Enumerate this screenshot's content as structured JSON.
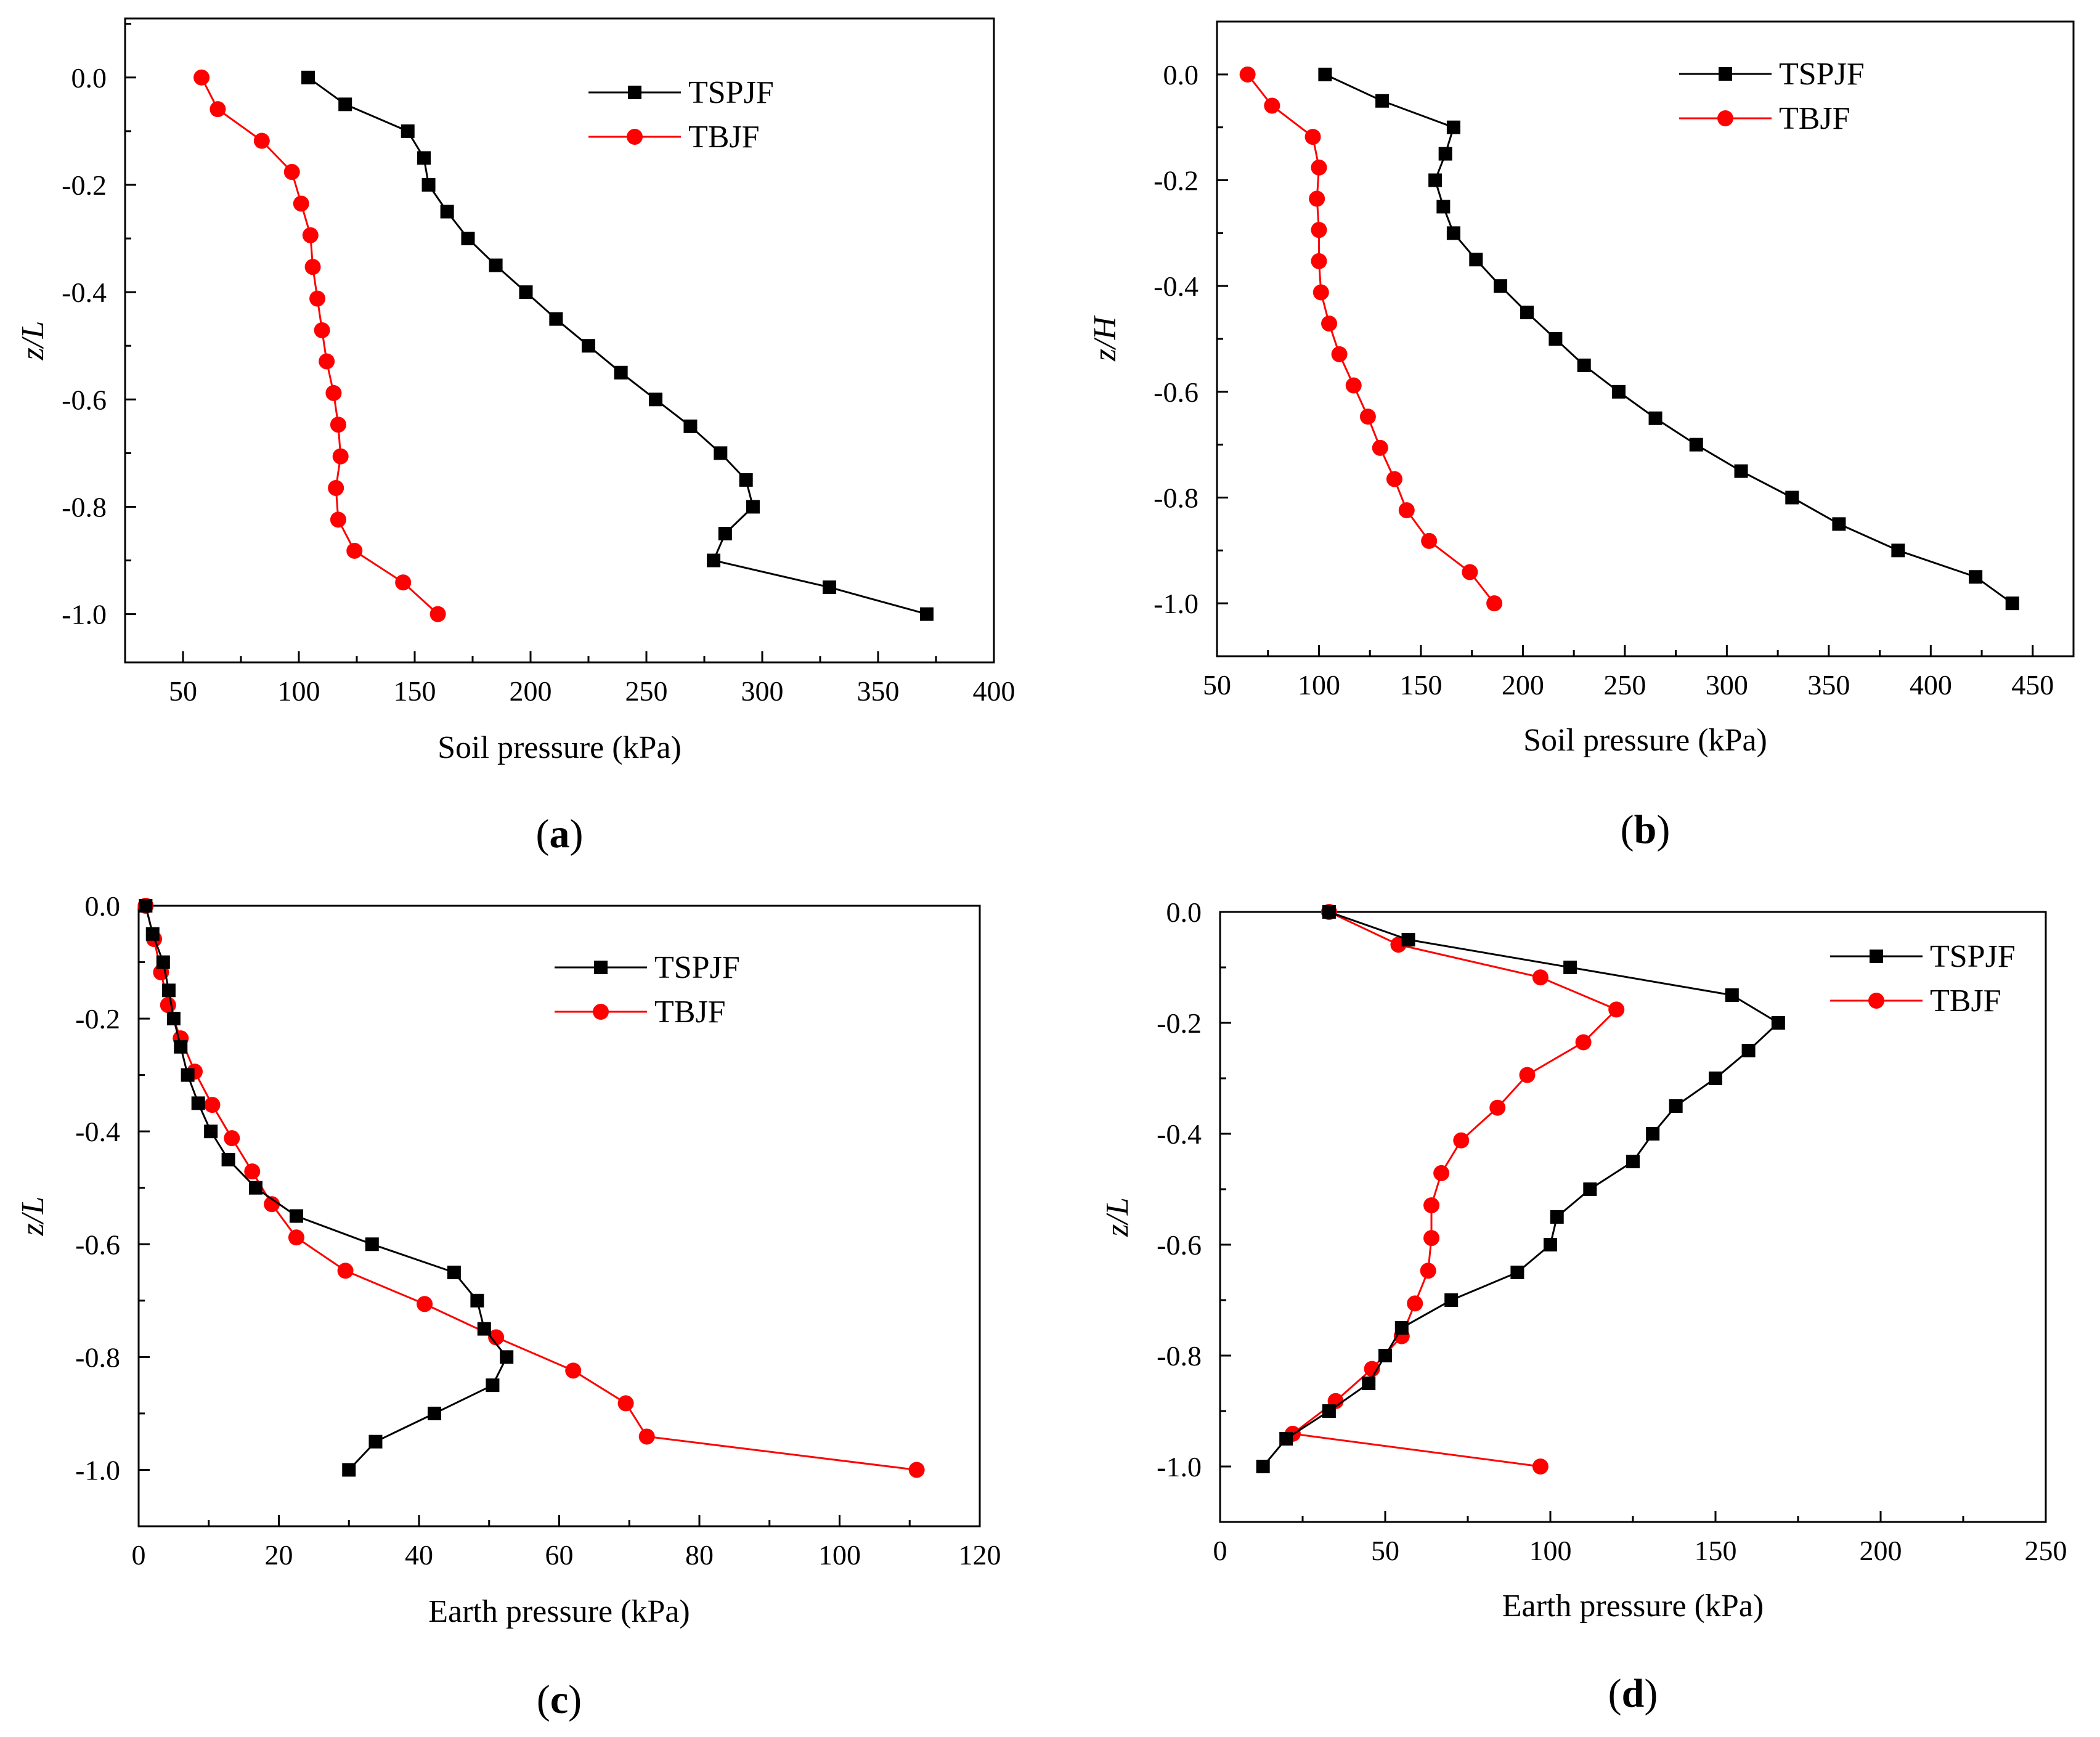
{
  "figure": {
    "panels": [
      {
        "letter": "a"
      },
      {
        "letter": "b"
      },
      {
        "letter": "c"
      },
      {
        "letter": "d"
      }
    ]
  },
  "colors": {
    "tspjf": "#000000",
    "tbjf": "#ff0000",
    "axis": "#000000"
  },
  "chart_data": [
    {
      "id": "a",
      "type": "line",
      "xlabel": "Soil pressure (kPa)",
      "ylabel": "z/L",
      "xlim": [
        25,
        400
      ],
      "ylim": [
        -1.09,
        0.11
      ],
      "xticks": [
        50,
        100,
        150,
        200,
        250,
        300,
        350,
        400
      ],
      "xtick_labels": [
        "50",
        "100",
        "150",
        "200",
        "250",
        "300",
        "350",
        "400"
      ],
      "yticks": [
        0,
        -0.2,
        -0.4,
        -0.6,
        -0.8,
        -1.0
      ],
      "ytick_labels": [
        "0.0",
        "-0.2",
        "-0.4",
        "-0.6",
        "-0.8",
        "-1.0"
      ],
      "legend_position": "top-right",
      "series": [
        {
          "name": "TSPJF",
          "marker": "square",
          "color": "#000000",
          "points": [
            [
              104,
              0
            ],
            [
              120,
              -0.05
            ],
            [
              147,
              -0.1
            ],
            [
              154,
              -0.15
            ],
            [
              156,
              -0.2
            ],
            [
              164,
              -0.25
            ],
            [
              173,
              -0.3
            ],
            [
              185,
              -0.35
            ],
            [
              198,
              -0.4
            ],
            [
              211,
              -0.45
            ],
            [
              225,
              -0.5
            ],
            [
              239,
              -0.55
            ],
            [
              254,
              -0.6
            ],
            [
              269,
              -0.65
            ],
            [
              282,
              -0.7
            ],
            [
              293,
              -0.75
            ],
            [
              296,
              -0.8
            ],
            [
              284,
              -0.85
            ],
            [
              279,
              -0.9
            ],
            [
              329,
              -0.95
            ],
            [
              371,
              -1.0
            ]
          ]
        },
        {
          "name": "TBJF",
          "marker": "circle",
          "color": "#ff0000",
          "points": [
            [
              58,
              0
            ],
            [
              65,
              -0.059
            ],
            [
              84,
              -0.118
            ],
            [
              97,
              -0.176
            ],
            [
              101,
              -0.235
            ],
            [
              105,
              -0.294
            ],
            [
              106,
              -0.353
            ],
            [
              108,
              -0.412
            ],
            [
              110,
              -0.471
            ],
            [
              112,
              -0.529
            ],
            [
              115,
              -0.588
            ],
            [
              117,
              -0.647
            ],
            [
              118,
              -0.706
            ],
            [
              116,
              -0.765
            ],
            [
              117,
              -0.824
            ],
            [
              124,
              -0.882
            ],
            [
              145,
              -0.941
            ],
            [
              160,
              -1.0
            ]
          ]
        }
      ]
    },
    {
      "id": "b",
      "type": "line",
      "xlabel": "Soil pressure (kPa)",
      "ylabel": "z/H",
      "xlim": [
        50,
        470
      ],
      "ylim": [
        -1.1,
        0.1
      ],
      "xticks": [
        50,
        100,
        150,
        200,
        250,
        300,
        350,
        400,
        450
      ],
      "xtick_labels": [
        "50",
        "100",
        "150",
        "200",
        "250",
        "300",
        "350",
        "400",
        "450"
      ],
      "yticks": [
        0,
        -0.2,
        -0.4,
        -0.6,
        -0.8,
        -1.0
      ],
      "ytick_labels": [
        "0.0",
        "-0.2",
        "-0.4",
        "-0.6",
        "-0.8",
        "-1.0"
      ],
      "legend_position": "top-right",
      "series": [
        {
          "name": "TSPJF",
          "marker": "square",
          "color": "#000000",
          "points": [
            [
              103,
              0
            ],
            [
              131,
              -0.05
            ],
            [
              166,
              -0.1
            ],
            [
              162,
              -0.15
            ],
            [
              157,
              -0.2
            ],
            [
              161,
              -0.25
            ],
            [
              166,
              -0.3
            ],
            [
              177,
              -0.35
            ],
            [
              189,
              -0.4
            ],
            [
              202,
              -0.45
            ],
            [
              216,
              -0.5
            ],
            [
              230,
              -0.55
            ],
            [
              247,
              -0.6
            ],
            [
              265,
              -0.65
            ],
            [
              285,
              -0.7
            ],
            [
              307,
              -0.75
            ],
            [
              332,
              -0.8
            ],
            [
              355,
              -0.85
            ],
            [
              384,
              -0.9
            ],
            [
              422,
              -0.95
            ],
            [
              440,
              -1.0
            ]
          ]
        },
        {
          "name": "TBJF",
          "marker": "circle",
          "color": "#ff0000",
          "points": [
            [
              65,
              0
            ],
            [
              77,
              -0.059
            ],
            [
              97,
              -0.118
            ],
            [
              100,
              -0.176
            ],
            [
              99,
              -0.235
            ],
            [
              100,
              -0.294
            ],
            [
              100,
              -0.353
            ],
            [
              101,
              -0.412
            ],
            [
              105,
              -0.471
            ],
            [
              110,
              -0.529
            ],
            [
              117,
              -0.588
            ],
            [
              124,
              -0.647
            ],
            [
              130,
              -0.706
            ],
            [
              137,
              -0.765
            ],
            [
              143,
              -0.824
            ],
            [
              154,
              -0.882
            ],
            [
              174,
              -0.941
            ],
            [
              186,
              -1.0
            ]
          ]
        }
      ]
    },
    {
      "id": "c",
      "type": "line",
      "xlabel": "Earth pressure (kPa)",
      "ylabel": "z/L",
      "xlim": [
        0,
        120
      ],
      "ylim": [
        -1.1,
        0.0
      ],
      "xticks": [
        0,
        20,
        40,
        60,
        80,
        100,
        120
      ],
      "xtick_labels": [
        "0",
        "20",
        "40",
        "60",
        "80",
        "100",
        "120"
      ],
      "yticks": [
        0,
        -0.2,
        -0.4,
        -0.6,
        -0.8,
        -1.0
      ],
      "ytick_labels": [
        "0.0",
        "-0.2",
        "-0.4",
        "-0.6",
        "-0.8",
        "-1.0"
      ],
      "legend_position": "top-right",
      "series": [
        {
          "name": "TSPJF",
          "marker": "square",
          "color": "#000000",
          "points": [
            [
              1,
              0
            ],
            [
              2,
              -0.05
            ],
            [
              3.5,
              -0.1
            ],
            [
              4.3,
              -0.15
            ],
            [
              5,
              -0.2
            ],
            [
              6,
              -0.25
            ],
            [
              7,
              -0.3
            ],
            [
              8.5,
              -0.35
            ],
            [
              10.3,
              -0.4
            ],
            [
              12.8,
              -0.45
            ],
            [
              16.7,
              -0.5
            ],
            [
              22.5,
              -0.55
            ],
            [
              33.3,
              -0.6
            ],
            [
              45,
              -0.65
            ],
            [
              48.3,
              -0.7
            ],
            [
              49.3,
              -0.75
            ],
            [
              52.5,
              -0.8
            ],
            [
              50.5,
              -0.85
            ],
            [
              42.2,
              -0.9
            ],
            [
              33.8,
              -0.95
            ],
            [
              30,
              -1.0
            ]
          ]
        },
        {
          "name": "TBJF",
          "marker": "circle",
          "color": "#ff0000",
          "points": [
            [
              1,
              0
            ],
            [
              2.2,
              -0.059
            ],
            [
              3.2,
              -0.118
            ],
            [
              4.2,
              -0.176
            ],
            [
              6,
              -0.235
            ],
            [
              8,
              -0.294
            ],
            [
              10.5,
              -0.353
            ],
            [
              13.3,
              -0.412
            ],
            [
              16.2,
              -0.471
            ],
            [
              19,
              -0.529
            ],
            [
              22.5,
              -0.588
            ],
            [
              29.5,
              -0.647
            ],
            [
              40.8,
              -0.706
            ],
            [
              51,
              -0.765
            ],
            [
              62,
              -0.824
            ],
            [
              69.5,
              -0.882
            ],
            [
              72.5,
              -0.941
            ],
            [
              111,
              -1.0
            ]
          ]
        }
      ]
    },
    {
      "id": "d",
      "type": "line",
      "xlabel": "Earth pressure (kPa)",
      "ylabel": "z/L",
      "xlim": [
        0,
        250
      ],
      "ylim": [
        -1.1,
        0.0
      ],
      "xticks": [
        0,
        50,
        100,
        150,
        200,
        250
      ],
      "xtick_labels": [
        "0",
        "50",
        "100",
        "150",
        "200",
        "250"
      ],
      "yticks": [
        0,
        -0.2,
        -0.4,
        -0.6,
        -0.8,
        -1.0
      ],
      "ytick_labels": [
        "0.0",
        "-0.2",
        "-0.4",
        "-0.6",
        "-0.8",
        "-1.0"
      ],
      "legend_position": "top-right",
      "series": [
        {
          "name": "TSPJF",
          "marker": "square",
          "color": "#000000",
          "points": [
            [
              33,
              0
            ],
            [
              57,
              -0.05
            ],
            [
              106,
              -0.1
            ],
            [
              155,
              -0.15
            ],
            [
              169,
              -0.2
            ],
            [
              160,
              -0.25
            ],
            [
              150,
              -0.3
            ],
            [
              138,
              -0.35
            ],
            [
              131,
              -0.4
            ],
            [
              125,
              -0.45
            ],
            [
              112,
              -0.5
            ],
            [
              102,
              -0.55
            ],
            [
              100,
              -0.6
            ],
            [
              90,
              -0.65
            ],
            [
              70,
              -0.7
            ],
            [
              55,
              -0.75
            ],
            [
              50,
              -0.8
            ],
            [
              45,
              -0.85
            ],
            [
              33,
              -0.9
            ],
            [
              20,
              -0.95
            ],
            [
              13,
              -1.0
            ]
          ]
        },
        {
          "name": "TBJF",
          "marker": "circle",
          "color": "#ff0000",
          "points": [
            [
              33,
              0
            ],
            [
              54,
              -0.059
            ],
            [
              97,
              -0.118
            ],
            [
              120,
              -0.176
            ],
            [
              110,
              -0.235
            ],
            [
              93,
              -0.294
            ],
            [
              84,
              -0.353
            ],
            [
              73,
              -0.412
            ],
            [
              67,
              -0.471
            ],
            [
              64,
              -0.529
            ],
            [
              64,
              -0.588
            ],
            [
              63,
              -0.647
            ],
            [
              59,
              -0.706
            ],
            [
              55,
              -0.765
            ],
            [
              46,
              -0.824
            ],
            [
              35,
              -0.882
            ],
            [
              22,
              -0.941
            ],
            [
              97,
              -1.0
            ]
          ]
        }
      ]
    }
  ]
}
